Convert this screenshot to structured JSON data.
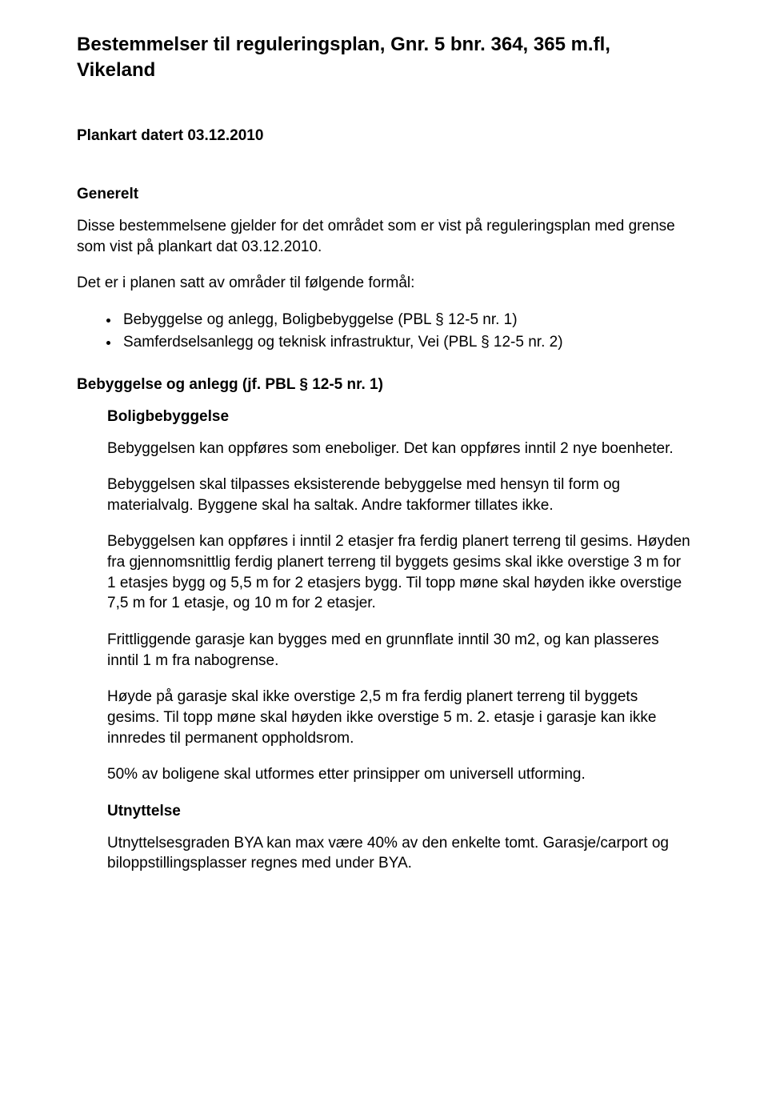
{
  "title": "Bestemmelser til reguleringsplan, Gnr. 5 bnr. 364, 365 m.fl, Vikeland",
  "subtitle": "Plankart datert 03.12.2010",
  "generelt": {
    "heading": "Generelt",
    "p1": "Disse bestemmelsene gjelder for det området som er vist på reguleringsplan med grense som vist på plankart dat 03.12.2010.",
    "p2": "Det er i planen satt av områder til følgende formål:",
    "bullets": [
      "Bebyggelse og anlegg, Boligbebyggelse (PBL § 12-5 nr. 1)",
      "Samferdselsanlegg og teknisk infrastruktur, Vei (PBL § 12-5 nr. 2)"
    ]
  },
  "bebyggelse": {
    "heading": "Bebyggelse og anlegg (jf. PBL § 12-5 nr. 1)",
    "bolig_heading": "Boligbebyggelse",
    "p1": "Bebyggelsen kan oppføres som eneboliger. Det kan oppføres inntil 2 nye boenheter.",
    "p2": "Bebyggelsen skal tilpasses eksisterende bebyggelse med hensyn til form og materialvalg. Byggene skal ha saltak. Andre takformer tillates ikke.",
    "p3": "Bebyggelsen kan oppføres i inntil 2 etasjer fra ferdig planert terreng til gesims. Høyden fra gjennomsnittlig ferdig planert terreng til byggets gesims skal ikke overstige 3 m for 1 etasjes bygg og 5,5 m for 2 etasjers bygg. Til topp møne skal høyden ikke overstige 7,5 m for 1 etasje, og 10 m for 2 etasjer.",
    "p4": "Frittliggende garasje kan bygges med en grunnflate inntil 30 m2, og kan plasseres inntil 1 m fra nabogrense.",
    "p5": "Høyde på garasje skal ikke overstige 2,5 m fra ferdig planert terreng til byggets gesims. Til topp møne skal høyden ikke overstige 5 m. 2. etasje i garasje kan ikke innredes til permanent oppholdsrom.",
    "p6": "50% av boligene skal utformes etter prinsipper om universell utforming.",
    "utnyttelse_heading": "Utnyttelse",
    "p7": "Utnyttelsesgraden BYA kan max være 40% av den enkelte tomt. Garasje/carport og biloppstillingsplasser regnes med under BYA."
  }
}
